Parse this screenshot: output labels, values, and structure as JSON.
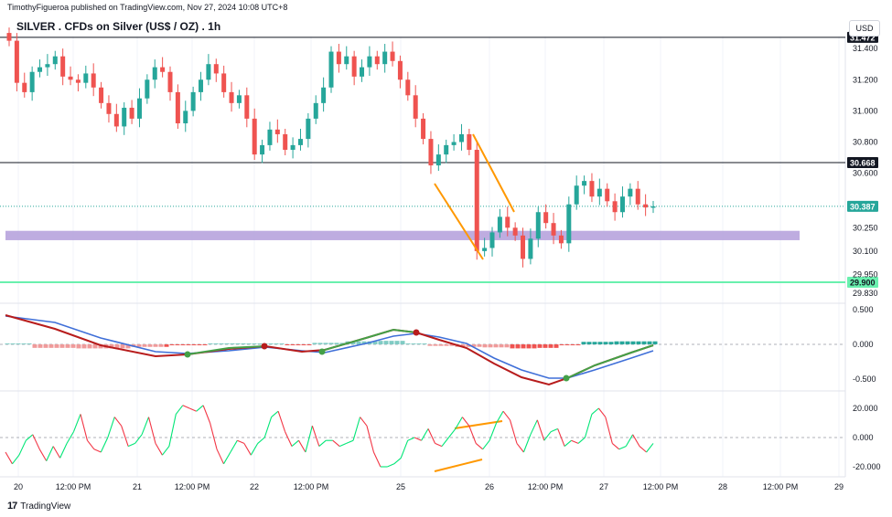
{
  "header": {
    "publisher_line": "TimothyFigueroa published on TradingView.com, Nov 27, 2024 10:08 UTC+8",
    "symbol_line": "SILVER . CFDs on Silver (US$ / OZ) . 1h",
    "currency": "USD"
  },
  "footer": {
    "logo_mark": "17",
    "brand": "TradingView"
  },
  "colors": {
    "up": "#26a69a",
    "down": "#ef5350",
    "zone": "#b39ddb",
    "support": "#4caf50",
    "pattern": "#ff9800",
    "macd_line": "#b71c1c",
    "signal_line": "#3f6fd8",
    "signal_up": "#43a047",
    "osc_up": "#00e676",
    "osc_down": "#f23645",
    "axis_text": "#131722"
  },
  "chart_data": [
    {
      "type": "candlestick",
      "title": "SILVER . CFDs on Silver (US$ / OZ) . 1h",
      "y_ticks": [
        "31.400",
        "31.200",
        "31.000",
        "30.800",
        "30.600",
        "30.250",
        "30.100",
        "29.950",
        "29.830"
      ],
      "price_labels": [
        {
          "text": "31.472",
          "value": 31.472,
          "style": "dark",
          "line": "resistance"
        },
        {
          "text": "30.668",
          "value": 30.668,
          "style": "dark",
          "line": "level"
        },
        {
          "text": "30.387",
          "value": 30.387,
          "style": "teal",
          "line": "last"
        },
        {
          "text": "29.900",
          "value": 29.9,
          "style": "green",
          "line": "support"
        }
      ],
      "zone": {
        "from": 30.17,
        "to": 30.23
      },
      "x_labels": [
        "20",
        "12:00 PM",
        "21",
        "12:00 PM",
        "22",
        "12:00 PM",
        "25",
        "26",
        "12:00 PM",
        "27",
        "12:00 PM",
        "28",
        "12:00 PM",
        "29"
      ],
      "close_series_approx": [
        31.45,
        31.18,
        31.12,
        31.25,
        31.28,
        31.3,
        31.35,
        31.22,
        31.2,
        31.18,
        31.24,
        31.15,
        31.05,
        30.98,
        30.9,
        31.02,
        30.95,
        31.08,
        31.2,
        31.28,
        31.25,
        31.12,
        30.92,
        31.0,
        31.12,
        31.2,
        31.3,
        31.24,
        31.12,
        31.05,
        31.1,
        30.95,
        30.72,
        30.78,
        30.88,
        30.85,
        30.75,
        30.78,
        30.82,
        30.95,
        31.05,
        31.15,
        31.38,
        31.3,
        31.35,
        31.22,
        31.28,
        31.35,
        31.3,
        31.38,
        31.32,
        31.2,
        31.1,
        30.95,
        30.82,
        30.65,
        30.72,
        30.78,
        30.8,
        30.85,
        30.75,
        30.1,
        30.12,
        30.22,
        30.32,
        30.25,
        30.2,
        30.05,
        30.18,
        30.35,
        30.28,
        30.2,
        30.15,
        30.4,
        30.52,
        30.55,
        30.45,
        30.5,
        30.42,
        30.35,
        30.45,
        30.5,
        30.4,
        30.38,
        30.387
      ]
    },
    {
      "type": "line",
      "name": "macd_panel",
      "y_ticks": [
        "0.500",
        "0.000",
        "-0.500"
      ]
    },
    {
      "type": "line",
      "name": "oscillator_panel",
      "y_ticks": [
        "20.000",
        "0.000",
        "-20.000"
      ]
    }
  ]
}
